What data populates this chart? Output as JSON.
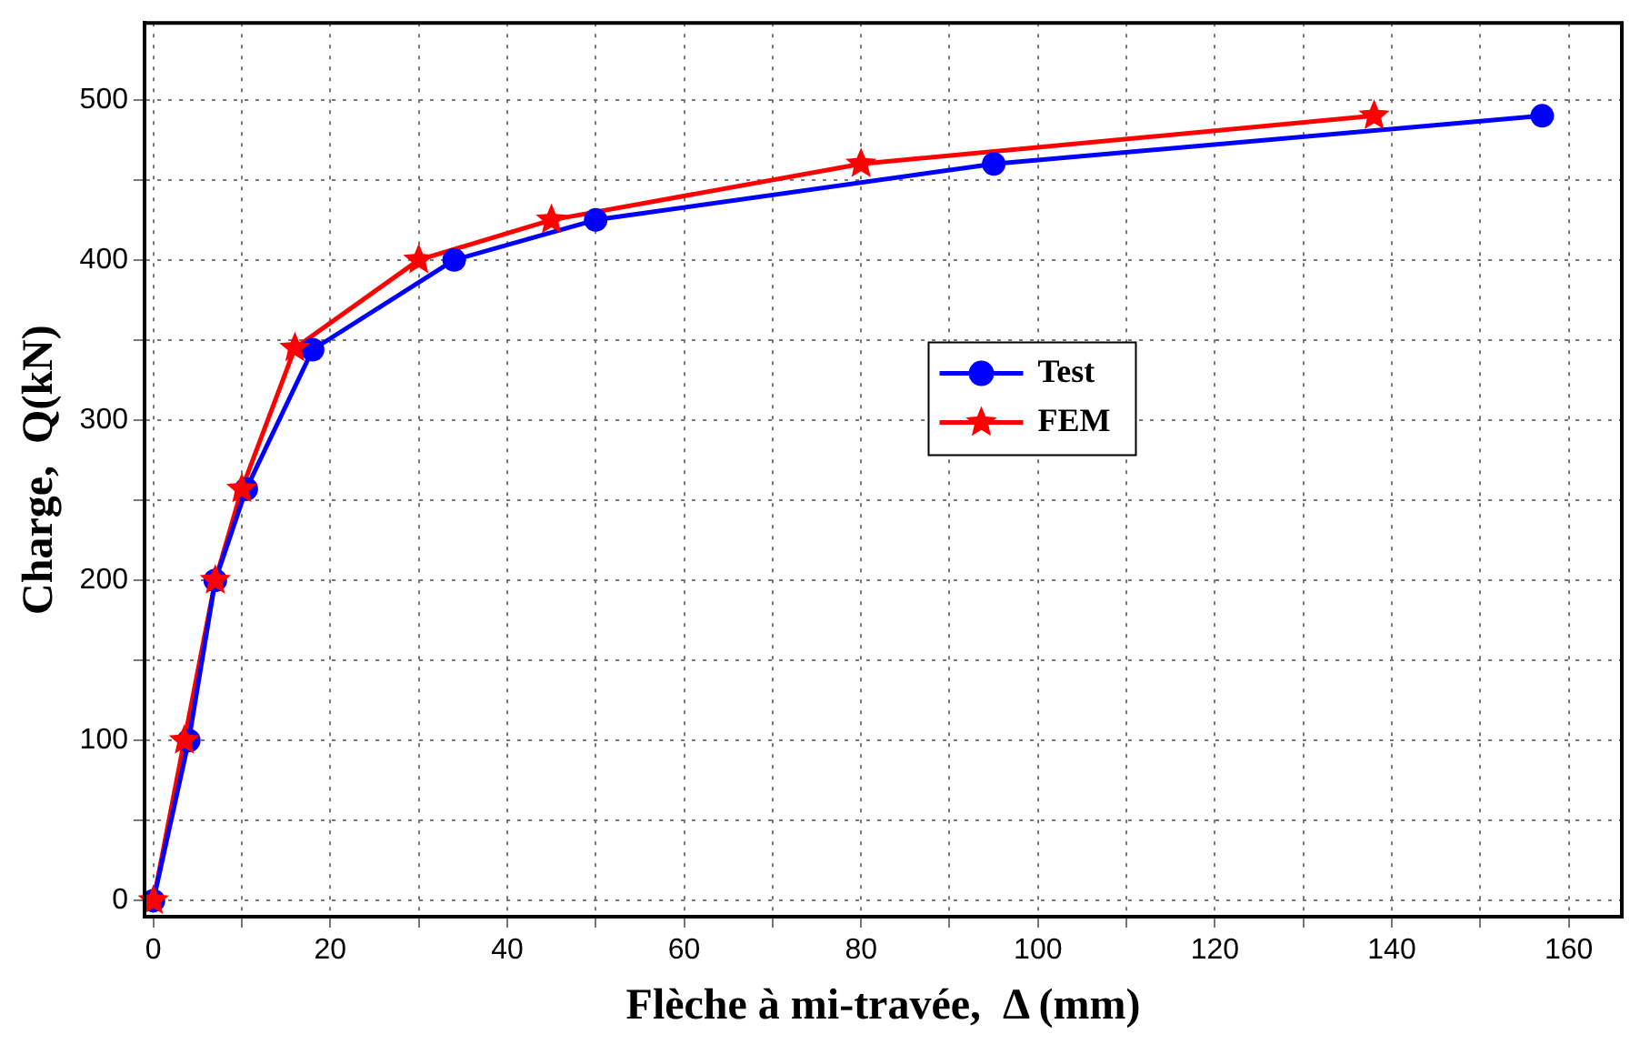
{
  "chart_data": {
    "type": "line",
    "xlabel": "Flèche à mi-travée,  Δ (mm)",
    "ylabel": "Charge,  Q(kN)",
    "xlim": [
      -1,
      166
    ],
    "ylim": [
      -10,
      548
    ],
    "xticks": [
      0,
      {
        "value": 10,
        "label": null
      },
      20,
      {
        "value": 30,
        "label": null
      },
      40,
      {
        "value": 50,
        "label": null
      },
      60,
      {
        "value": 70,
        "label": null
      },
      80,
      {
        "value": 90,
        "label": null
      },
      100,
      {
        "value": 110,
        "label": null
      },
      120,
      {
        "value": 130,
        "label": null
      },
      140,
      {
        "value": 150,
        "label": null
      },
      160
    ],
    "yticks": [
      0,
      {
        "value": 50,
        "label": null
      },
      100,
      {
        "value": 150,
        "label": null
      },
      200,
      {
        "value": 250,
        "label": null
      },
      300,
      {
        "value": 350,
        "label": null
      },
      400,
      {
        "value": 450,
        "label": null
      },
      500
    ],
    "grid": true,
    "legend": "center",
    "line_style": "solid",
    "series": [
      {
        "name": "Test",
        "color": "#0000ff",
        "marker": "circle",
        "x": [
          0,
          4,
          7,
          10.5,
          18,
          34,
          50,
          95,
          157
        ],
        "values": [
          0,
          100,
          200,
          257,
          344,
          400,
          425,
          460,
          490
        ]
      },
      {
        "name": "FEM",
        "color": "#ff0000",
        "marker": "star",
        "x": [
          0,
          3.5,
          7,
          10,
          16,
          30,
          45,
          80,
          138
        ],
        "values": [
          0,
          100,
          200,
          257,
          345,
          400,
          425,
          460,
          490
        ]
      }
    ]
  }
}
